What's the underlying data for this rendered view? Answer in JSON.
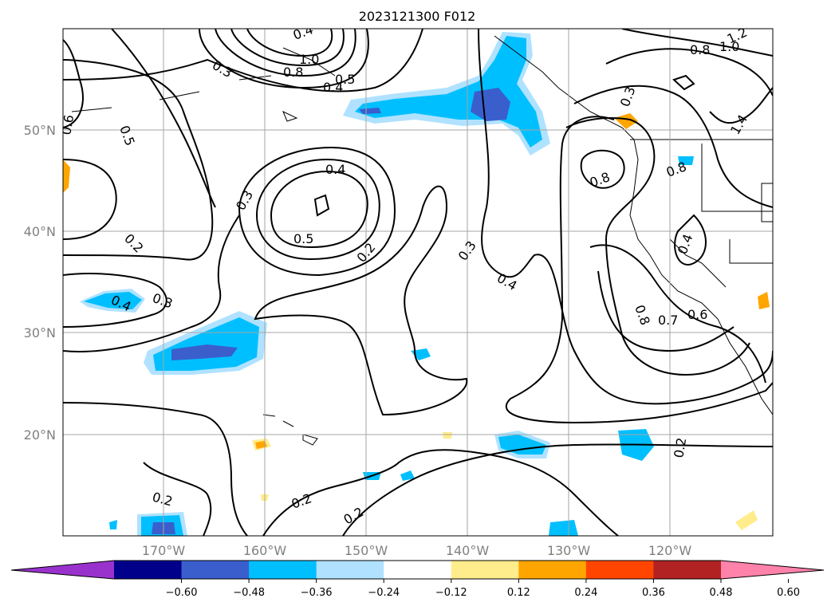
{
  "title": "2023121300 F012",
  "map": {
    "lat_labels": [
      "50°N",
      "40°N",
      "30°N",
      "20°N"
    ],
    "lon_labels": [
      "170°W",
      "160°W",
      "150°W",
      "140°W",
      "130°W",
      "120°W"
    ],
    "gridlines": true
  },
  "contour_labels": [
    "0.4",
    "0.5",
    "0.6",
    "0.3",
    "0.8",
    "1.0",
    "1.2",
    "0.8",
    "1.0",
    "1.4",
    "0.5",
    "0.4",
    "0.3",
    "0.5",
    "0.2",
    "0.2",
    "0.3",
    "0.4",
    "0.3",
    "0.4",
    "0.8",
    "0.8",
    "0.4",
    "0.8",
    "0.7",
    "0.6",
    "0.2",
    "0.2",
    "0.2",
    "0.2",
    "0.3",
    "0.4"
  ],
  "colorbar": {
    "ticks": [
      "−0.60",
      "−0.48",
      "−0.36",
      "−0.24",
      "−0.12",
      "0.12",
      "0.24",
      "0.36",
      "0.48",
      "0.60"
    ],
    "colors": [
      "#9932cc",
      "#00008b",
      "#3a5fcd",
      "#00bfff",
      "#b0e2ff",
      "#ffffff",
      "#ffec8b",
      "#ffa500",
      "#ff4500",
      "#b22222",
      "#ff82ab"
    ]
  }
}
